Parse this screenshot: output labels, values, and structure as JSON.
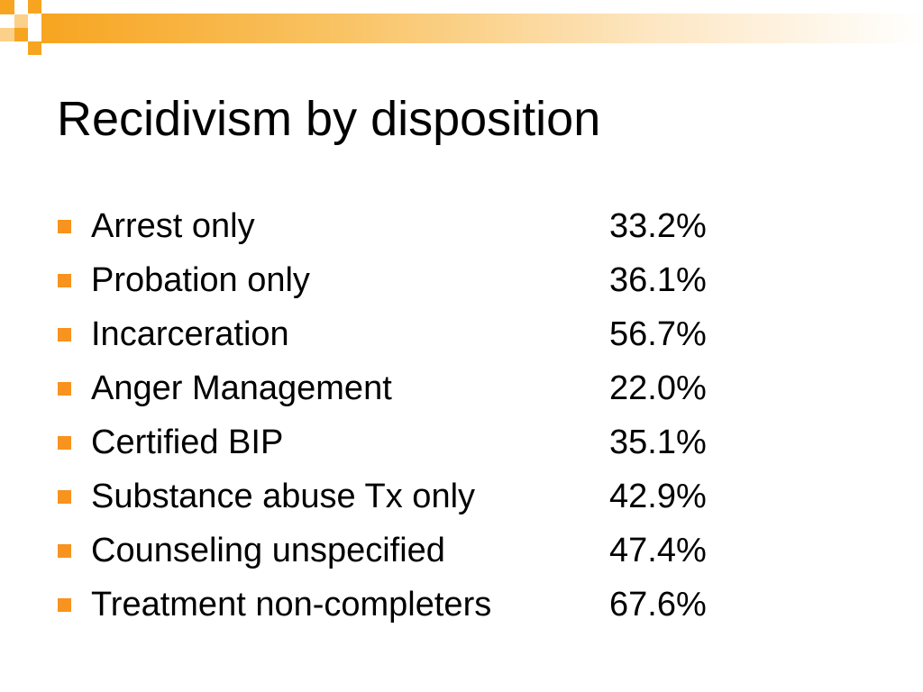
{
  "slide": {
    "title": "Recidivism by disposition",
    "accent_color": "#f7931e",
    "items": [
      {
        "label": "Arrest only",
        "value": "33.2%"
      },
      {
        "label": "Probation only",
        "value": "36.1%"
      },
      {
        "label": "Incarceration",
        "value": "56.7%"
      },
      {
        "label": "Anger Management",
        "value": "22.0%"
      },
      {
        "label": "Certified BIP",
        "value": "35.1%"
      },
      {
        "label": "Substance abuse Tx only",
        "value": "42.9%"
      },
      {
        "label": "Counseling unspecified",
        "value": "47.4%"
      },
      {
        "label": "Treatment non-completers",
        "value": "67.6%"
      }
    ]
  }
}
